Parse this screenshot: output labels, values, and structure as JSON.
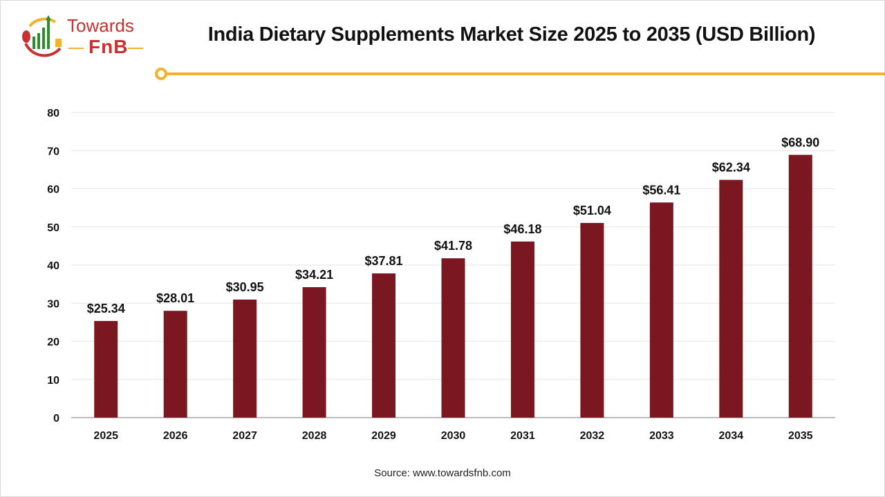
{
  "logo": {
    "line1": "Towards",
    "line2": "FnB"
  },
  "title": "India Dietary Supplements Market Size 2025 to 2035 (USD Billion)",
  "source": "Source: www.towardsfnb.com",
  "colors": {
    "bar": "#7b1720",
    "accent": "#f2b22a",
    "brand": "#c8312f"
  },
  "chart_data": {
    "type": "bar",
    "title": "India Dietary Supplements Market Size 2025 to 2035 (USD Billion)",
    "categories": [
      "2025",
      "2026",
      "2027",
      "2028",
      "2029",
      "2030",
      "2031",
      "2032",
      "2033",
      "2034",
      "2035"
    ],
    "values": [
      25.34,
      28.01,
      30.95,
      34.21,
      37.81,
      41.78,
      46.18,
      51.04,
      56.41,
      62.34,
      68.9
    ],
    "data_labels": [
      "$25.34",
      "$28.01",
      "$30.95",
      "$34.21",
      "$37.81",
      "$41.78",
      "$46.18",
      "$51.04",
      "$56.41",
      "$62.34",
      "$68.90"
    ],
    "yticks": [
      0,
      10,
      20,
      30,
      40,
      50,
      60,
      70,
      80
    ],
    "ylim": [
      0,
      80
    ],
    "xlabel": "",
    "ylabel": "",
    "grid": true,
    "legend": "none"
  }
}
